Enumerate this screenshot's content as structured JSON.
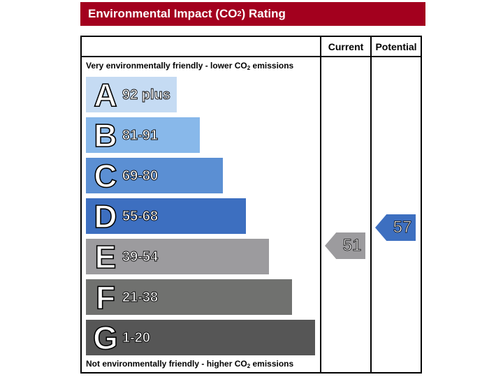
{
  "title": {
    "prefix": "Environmental Impact (CO",
    "sub": "2",
    "suffix": ") Rating"
  },
  "headers": {
    "current": "Current",
    "potential": "Potential"
  },
  "captions": {
    "top": {
      "prefix": "Very environmentally friendly - lower CO",
      "sub": "2",
      "suffix": " emissions"
    },
    "bottom": {
      "prefix": "Not environmentally friendly - higher CO",
      "sub": "2",
      "suffix": " emissions"
    }
  },
  "chart_data": {
    "type": "bar",
    "bands": [
      {
        "letter": "A",
        "range": "92 plus",
        "color": "#c5dbf3"
      },
      {
        "letter": "B",
        "range": "81-91",
        "color": "#88b8ea"
      },
      {
        "letter": "C",
        "range": "69-80",
        "color": "#5b8fd3"
      },
      {
        "letter": "D",
        "range": "55-68",
        "color": "#3d6fc0"
      },
      {
        "letter": "E",
        "range": "39-54",
        "color": "#9c9b9e"
      },
      {
        "letter": "F",
        "range": "21-38",
        "color": "#70716f"
      },
      {
        "letter": "G",
        "range": "1-20",
        "color": "#565656"
      }
    ],
    "current": {
      "value": "51",
      "band": "E",
      "color": "#9c9b9e"
    },
    "potential": {
      "value": "57",
      "band": "D",
      "color": "#3d6fc0"
    }
  }
}
